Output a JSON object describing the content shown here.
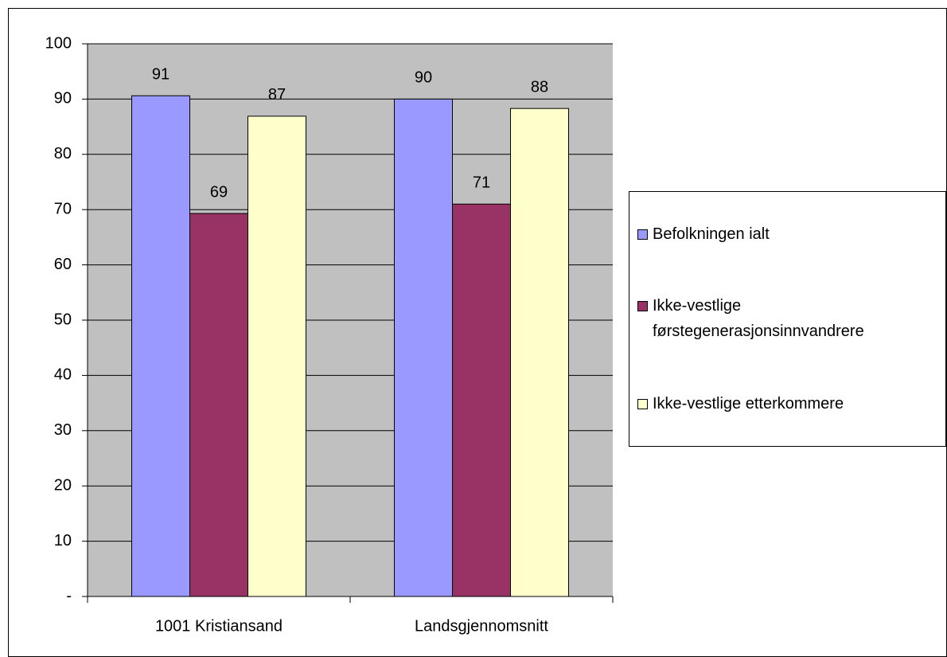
{
  "chart_data": {
    "type": "bar",
    "categories": [
      "1001 Kristiansand",
      "Landsgjennomsnitt"
    ],
    "series": [
      {
        "name": "Befolkningen ialt",
        "color": "#9999ff",
        "values": [
          90.6,
          90.0
        ],
        "value_labels": [
          "91",
          "90"
        ]
      },
      {
        "name": "Ikke-vestlige førstegenerasjonsinnvandrere",
        "color": "#993366",
        "values": [
          69.3,
          71.0
        ],
        "value_labels": [
          "69",
          "71"
        ]
      },
      {
        "name": "Ikke-vestlige etterkommere",
        "color": "#ffffcc",
        "values": [
          86.9,
          88.3
        ],
        "value_labels": [
          "87",
          "88"
        ]
      }
    ],
    "ylim": [
      0,
      100
    ],
    "yticks": [
      {
        "value": 0,
        "label": "-"
      },
      10,
      20,
      30,
      40,
      50,
      60,
      70,
      80,
      90,
      100
    ],
    "grid": true,
    "plot_background": "#c0c0c0",
    "legend": "right"
  }
}
